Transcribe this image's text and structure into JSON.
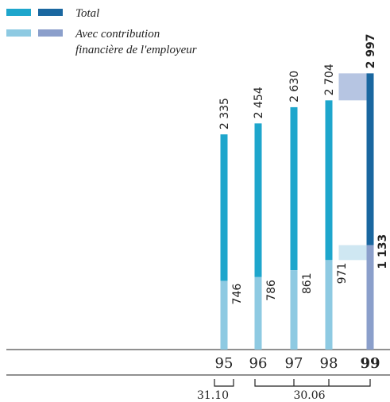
{
  "legend": {
    "total_label": "Total",
    "contribution_line1": "Avec contribution",
    "contribution_line2": "financière de l'employeur"
  },
  "colors": {
    "total": "#1ea6cc",
    "total_highlight": "#1a67a0",
    "contribution": "#8ecae2",
    "contribution_highlight": "#8b9fcb",
    "total_band": "#b6c5e2",
    "contribution_band": "#cfe7f2",
    "axis": "#222222"
  },
  "chart_data": {
    "type": "bar",
    "categories": [
      "95",
      "96",
      "97",
      "98",
      "99"
    ],
    "series": [
      {
        "name": "Total",
        "values": [
          2335,
          2454,
          2630,
          2704,
          2997
        ]
      },
      {
        "name": "Avec contribution financière de l'employeur",
        "values": [
          746,
          786,
          861,
          971,
          1133
        ]
      }
    ],
    "value_labels": {
      "total": [
        "2 335",
        "2 454",
        "2 630",
        "2 704",
        "2 997"
      ],
      "contribution": [
        "746",
        "786",
        "861",
        "971",
        "1 133"
      ]
    },
    "highlight_category": "99",
    "date_labels": [
      "31.10",
      "30.06"
    ],
    "ylim": [
      0,
      3000
    ]
  }
}
